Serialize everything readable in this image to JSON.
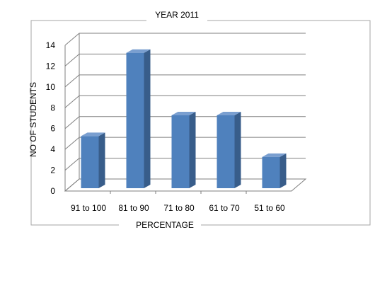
{
  "chart_data": {
    "type": "bar",
    "title": "YEAR 2011",
    "xlabel": "PERCENTAGE",
    "ylabel": "NO OF STUDENTS",
    "categories": [
      "91 to 100",
      "81 to 90",
      "71 to 80",
      "61 to 70",
      "51 to 60"
    ],
    "values": [
      5,
      13,
      7,
      7,
      3
    ],
    "ylim": [
      0,
      14
    ],
    "yticks": [
      0,
      2,
      4,
      6,
      8,
      10,
      12,
      14
    ],
    "grid": true,
    "style": "3d-column",
    "colors": {
      "bar_front": "#4F81BD",
      "bar_side": "#385D8A",
      "bar_top": "#7A9FD0",
      "grid": "#7F7F7F",
      "frame": "#A6A6A6"
    }
  }
}
